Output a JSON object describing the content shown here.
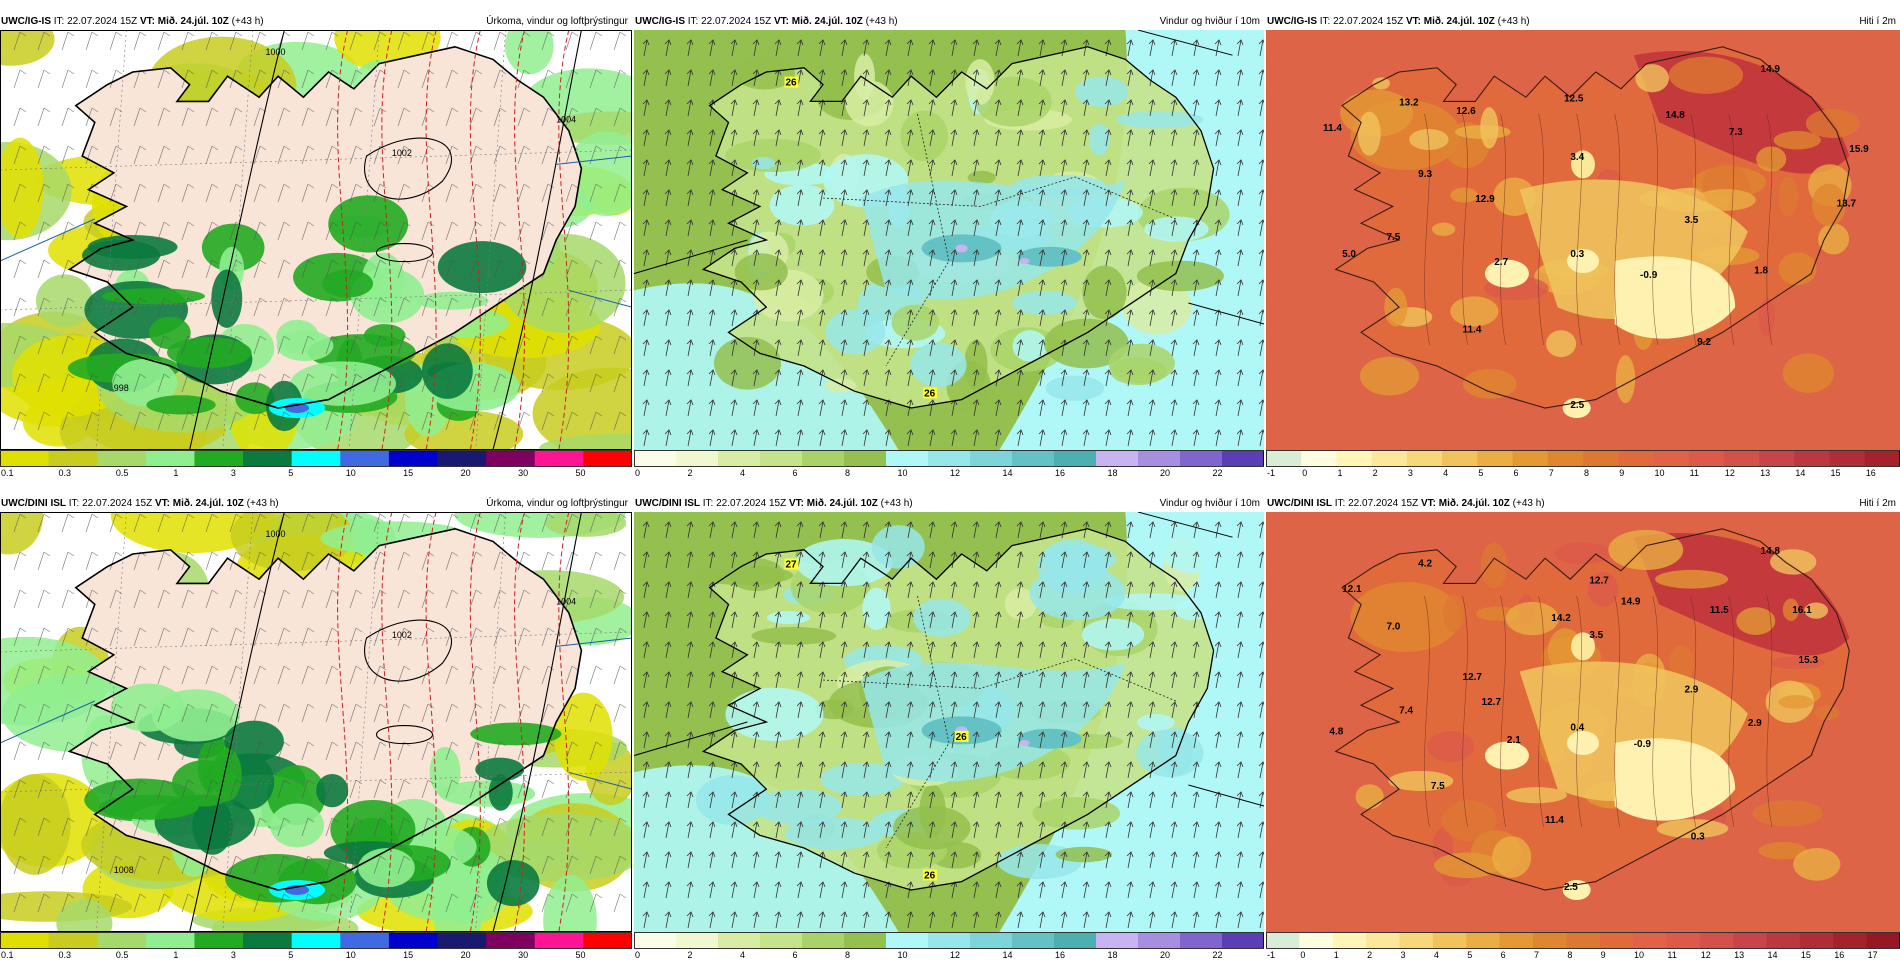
{
  "rows": [
    {
      "panels": [
        {
          "kind": "precip",
          "model": "UWC/IG-IS",
          "it_label": "IT:",
          "it_value": "22.07.2024 15Z",
          "vt_label": "VT:",
          "vt_value": "Mið. 24.júl. 10Z",
          "lead": "(+43 h)",
          "title": "Úrkoma, vindur og loftþrýstingur",
          "isobars": [
            "1000",
            "1002",
            "1004",
            "998"
          ],
          "labels": []
        },
        {
          "kind": "wind",
          "model": "UWC/IG-IS",
          "it_label": "IT:",
          "it_value": "22.07.2024 15Z",
          "vt_label": "VT:",
          "vt_value": "Mið. 24.júl. 10Z",
          "lead": "(+43 h)",
          "title": "Vindur og hviður í 10m",
          "labels": [
            "26",
            "26"
          ]
        },
        {
          "kind": "temp",
          "model": "UWC/IG-IS",
          "it_label": "IT:",
          "it_value": "22.07.2024 15Z",
          "vt_label": "VT:",
          "vt_value": "Mið. 24.júl. 10Z",
          "lead": "(+43 h)",
          "title": "Hiti í 2m",
          "labels": [
            "14.9",
            "13.2",
            "12.6",
            "12.5",
            "14.8",
            "11.4",
            "7.3",
            "15.9",
            "3.4",
            "9.3",
            "13.7",
            "12.9",
            "3.5",
            "7.5",
            "5.0",
            "2.7",
            "0.3",
            "-0.9",
            "1.8",
            "11.4",
            "9.2",
            "2.5"
          ]
        }
      ]
    },
    {
      "panels": [
        {
          "kind": "precip",
          "model": "UWC/DINI ISL",
          "it_label": "IT:",
          "it_value": "22.07.2024 15Z",
          "vt_label": "VT:",
          "vt_value": "Mið. 24.júl. 10Z",
          "lead": "(+43 h)",
          "title": "Úrkoma, vindur og loftþrýstingur",
          "isobars": [
            "1000",
            "1002",
            "1004",
            "1008"
          ],
          "labels": []
        },
        {
          "kind": "wind",
          "model": "UWC/DINI ISL",
          "it_label": "IT:",
          "it_value": "22.07.2024 15Z",
          "vt_label": "VT:",
          "vt_value": "Mið. 24.júl. 10Z",
          "lead": "(+43 h)",
          "title": "Vindur og hviður í 10m",
          "labels": [
            "27",
            "26",
            "26"
          ]
        },
        {
          "kind": "temp",
          "model": "UWC/DINI ISL",
          "it_label": "IT:",
          "it_value": "22.07.2024 15Z",
          "vt_label": "VT:",
          "vt_value": "Mið. 24.júl. 10Z",
          "lead": "(+43 h)",
          "title": "Hiti í 2m",
          "labels": [
            "4.2",
            "14.8",
            "12.1",
            "12.7",
            "14.9",
            "11.5",
            "16.1",
            "7.0",
            "14.2",
            "3.5",
            "15.3",
            "12.7",
            "7.4",
            "2.9",
            "4.8",
            "2.1",
            "0.4",
            "-0.9",
            "2.9",
            "12.7",
            "7.5",
            "11.4",
            "0.3",
            "2.5"
          ]
        }
      ]
    }
  ],
  "colorbars": {
    "precip": {
      "ticks": [
        "0.1",
        "0.3",
        "0.5",
        "1",
        "3",
        "5",
        "10",
        "15",
        "20",
        "30",
        "50"
      ],
      "colors": [
        "#e0e000",
        "#c8cc1e",
        "#a7d96a",
        "#90ee90",
        "#22aa22",
        "#0b7a3e",
        "#00ffff",
        "#4169e1",
        "#0000cd",
        "#191970",
        "#800060",
        "#ff1493",
        "#ff0000"
      ]
    },
    "wind": {
      "ticks": [
        "0",
        "2",
        "4",
        "6",
        "8",
        "10",
        "12",
        "14",
        "16",
        "18",
        "20",
        "22"
      ],
      "colors": [
        "#fafde8",
        "#f0f8d0",
        "#d8eda4",
        "#c4e38a",
        "#a9d36a",
        "#93c04e",
        "#b0f8f8",
        "#97e6ea",
        "#7ed4d8",
        "#65c2c4",
        "#4db0b0",
        "#c8b4f0",
        "#a78ee0",
        "#8066cc",
        "#5a3fb4"
      ]
    },
    "temp": {
      "ticks_top": [
        "-1",
        "0",
        "1",
        "2",
        "3",
        "4",
        "5",
        "6",
        "7",
        "8",
        "9",
        "10",
        "11",
        "12",
        "13",
        "14",
        "15",
        "16"
      ],
      "ticks_bottom": [
        "-1",
        "0",
        "1",
        "2",
        "3",
        "4",
        "5",
        "6",
        "7",
        "8",
        "9",
        "10",
        "11",
        "12",
        "13",
        "14",
        "15",
        "16",
        "17"
      ],
      "colors": [
        "#d8ecd6",
        "#fffde0",
        "#fff6b8",
        "#fbe89a",
        "#f6d77a",
        "#f0c35c",
        "#eaae44",
        "#e49935",
        "#df8630",
        "#dd7832",
        "#e06a3c",
        "#e26247",
        "#dd5a4a",
        "#d4504a",
        "#c8444a",
        "#bc3840",
        "#b02c36",
        "#a3222c",
        "#961824"
      ]
    }
  },
  "colors": {
    "iceland_fill": "#f9e4d8",
    "coast": "#000000",
    "isobar_red": "#cc2222",
    "sea_blue_line": "#1f5fa8",
    "wind_green": "#93c04e",
    "wind_cyan": "#b0f8f8",
    "temp_sea": "#dd6446",
    "temp_land_hot": "#c43a3c",
    "temp_glacier": "#fff2b0"
  }
}
